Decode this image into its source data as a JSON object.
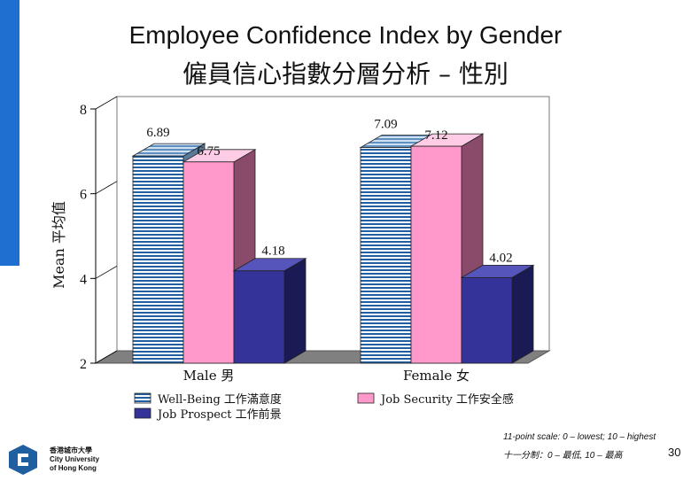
{
  "title": "Employee Confidence Index by Gender",
  "subtitle": "僱員信心指數分層分析 – 性別",
  "footer": {
    "scale_note_en": "11-point scale: 0 – lowest; 10 – highest",
    "scale_note_zh": "十一分制：0 – 最低, 10 – 最高",
    "page_number": "30",
    "logo_text": [
      "香港城市大學",
      "City University",
      "of Hong Kong"
    ]
  },
  "colors": {
    "accent_bar": "#1f6fd0",
    "well_being": "#1f5fa0",
    "job_security": "#ff99cc",
    "job_prospect": "#333399"
  },
  "chart_data": {
    "type": "bar",
    "title": "",
    "ylabel": "Mean 平均值",
    "xlabel": "",
    "ylim": [
      2,
      8
    ],
    "yticks": [
      2,
      4,
      6,
      8
    ],
    "categories": [
      "Male 男",
      "Female 女"
    ],
    "series": [
      {
        "name": "Well-Being 工作滿意度",
        "values": [
          6.89,
          7.09
        ],
        "color": "#1f5fa0",
        "pattern": "stripes"
      },
      {
        "name": "Job Security 工作安全感",
        "values": [
          6.75,
          7.12
        ],
        "color": "#ff99cc",
        "pattern": "solid"
      },
      {
        "name": "Job Prospect 工作前景",
        "values": [
          4.18,
          4.02
        ],
        "color": "#333399",
        "pattern": "solid"
      }
    ],
    "data_labels": true,
    "legend": "bottom",
    "grid": false,
    "style": "3d"
  }
}
